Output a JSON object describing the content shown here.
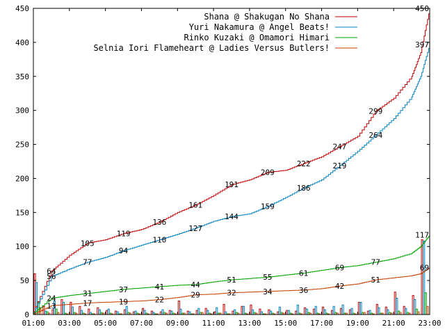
{
  "chart_data": {
    "type": "line",
    "xlim": [
      "01:00",
      "23:00"
    ],
    "ylim": [
      0,
      450
    ],
    "x_ticks": [
      "01:00",
      "03:00",
      "05:00",
      "07:00",
      "09:00",
      "11:00",
      "13:00",
      "15:00",
      "17:00",
      "19:00",
      "21:00",
      "23:00"
    ],
    "y_ticks": [
      0,
      50,
      100,
      150,
      200,
      250,
      300,
      350,
      400,
      450
    ],
    "legend_position": "top-right",
    "grid": false,
    "series": [
      {
        "name": "Shana @ Shakugan No Shana",
        "color": "#c00000",
        "x": [
          "01:00",
          "02:00",
          "03:00",
          "04:00",
          "05:00",
          "06:00",
          "07:00",
          "08:00",
          "09:00",
          "10:00",
          "11:00",
          "12:00",
          "13:00",
          "14:00",
          "15:00",
          "16:00",
          "17:00",
          "18:00",
          "19:00",
          "20:00",
          "21:00",
          "22:00",
          "22:30",
          "23:00"
        ],
        "values": [
          4,
          64,
          87,
          105,
          110,
          119,
          125,
          136,
          150,
          161,
          175,
          191,
          198,
          209,
          212,
          222,
          232,
          247,
          262,
          299,
          318,
          350,
          385,
          450
        ],
        "labels": [
          {
            "x": "02:00",
            "value": "64"
          },
          {
            "x": "04:00",
            "value": "105"
          },
          {
            "x": "06:00",
            "value": "119"
          },
          {
            "x": "08:00",
            "value": "136"
          },
          {
            "x": "10:00",
            "value": "161"
          },
          {
            "x": "12:00",
            "value": "191"
          },
          {
            "x": "14:00",
            "value": "209"
          },
          {
            "x": "16:00",
            "value": "222"
          },
          {
            "x": "18:00",
            "value": "247"
          },
          {
            "x": "20:00",
            "value": "299"
          },
          {
            "x": "23:00",
            "value": "450"
          }
        ]
      },
      {
        "name": "Yuri Nakamura @ Angel Beats!",
        "color": "#0080c0",
        "x": [
          "01:00",
          "02:00",
          "03:00",
          "04:00",
          "05:00",
          "06:00",
          "07:00",
          "08:00",
          "09:00",
          "10:00",
          "11:00",
          "12:00",
          "13:00",
          "14:00",
          "15:00",
          "16:00",
          "17:00",
          "18:00",
          "19:00",
          "20:00",
          "21:00",
          "22:00",
          "22:30",
          "23:00"
        ],
        "values": [
          3,
          56,
          67,
          77,
          84,
          94,
          102,
          110,
          118,
          127,
          137,
          144,
          148,
          159,
          172,
          186,
          198,
          219,
          240,
          264,
          288,
          320,
          350,
          397
        ],
        "labels": [
          {
            "x": "02:00",
            "value": "56"
          },
          {
            "x": "04:00",
            "value": "77"
          },
          {
            "x": "06:00",
            "value": "94"
          },
          {
            "x": "08:00",
            "value": "110"
          },
          {
            "x": "10:00",
            "value": "127"
          },
          {
            "x": "12:00",
            "value": "144"
          },
          {
            "x": "14:00",
            "value": "159"
          },
          {
            "x": "16:00",
            "value": "186"
          },
          {
            "x": "18:00",
            "value": "219"
          },
          {
            "x": "20:00",
            "value": "264"
          },
          {
            "x": "23:00",
            "value": "397"
          }
        ]
      },
      {
        "name": "Rinko Kuzaki @ Omamori Himari",
        "color": "#00a000",
        "x": [
          "01:00",
          "02:00",
          "03:00",
          "04:00",
          "05:00",
          "06:00",
          "07:00",
          "08:00",
          "09:00",
          "10:00",
          "11:00",
          "12:00",
          "13:00",
          "14:00",
          "15:00",
          "16:00",
          "17:00",
          "18:00",
          "19:00",
          "20:00",
          "21:00",
          "22:00",
          "22:30",
          "23:00"
        ],
        "values": [
          2,
          24,
          28,
          31,
          34,
          37,
          39,
          41,
          43,
          44,
          48,
          51,
          53,
          55,
          58,
          61,
          65,
          69,
          72,
          77,
          82,
          90,
          100,
          117
        ],
        "labels": [
          {
            "x": "02:00",
            "value": "24"
          },
          {
            "x": "04:00",
            "value": "31"
          },
          {
            "x": "06:00",
            "value": "37"
          },
          {
            "x": "08:00",
            "value": "41"
          },
          {
            "x": "10:00",
            "value": "44"
          },
          {
            "x": "12:00",
            "value": "51"
          },
          {
            "x": "14:00",
            "value": "55"
          },
          {
            "x": "16:00",
            "value": "61"
          },
          {
            "x": "18:00",
            "value": "69"
          },
          {
            "x": "20:00",
            "value": "77"
          },
          {
            "x": "23:00",
            "value": "117"
          }
        ]
      },
      {
        "name": "Selnia Iori Flameheart @ Ladies Versus Butlers!",
        "color": "#c04000",
        "x": [
          "01:00",
          "02:00",
          "03:00",
          "04:00",
          "05:00",
          "06:00",
          "07:00",
          "08:00",
          "09:00",
          "10:00",
          "11:00",
          "12:00",
          "13:00",
          "14:00",
          "15:00",
          "16:00",
          "17:00",
          "18:00",
          "19:00",
          "20:00",
          "21:00",
          "22:00",
          "22:30",
          "23:00"
        ],
        "values": [
          1,
          13,
          15,
          17,
          18,
          19,
          20,
          22,
          25,
          29,
          30,
          32,
          33,
          34,
          35,
          36,
          38,
          42,
          45,
          51,
          54,
          57,
          60,
          69
        ],
        "labels": [
          {
            "x": "02:00",
            "value": "13"
          },
          {
            "x": "04:00",
            "value": "17"
          },
          {
            "x": "06:00",
            "value": "19"
          },
          {
            "x": "08:00",
            "value": "22"
          },
          {
            "x": "10:00",
            "value": "29"
          },
          {
            "x": "12:00",
            "value": "32"
          },
          {
            "x": "14:00",
            "value": "34"
          },
          {
            "x": "16:00",
            "value": "36"
          },
          {
            "x": "18:00",
            "value": "42"
          },
          {
            "x": "20:00",
            "value": "51"
          },
          {
            "x": "23:00",
            "value": "69"
          }
        ]
      }
    ],
    "bars": {
      "x": [
        "01:00",
        "01:30",
        "02:00",
        "02:30",
        "03:00",
        "03:30",
        "04:00",
        "04:30",
        "05:00",
        "05:30",
        "06:00",
        "06:30",
        "07:00",
        "07:30",
        "08:00",
        "08:30",
        "09:00",
        "09:30",
        "10:00",
        "10:30",
        "11:00",
        "11:30",
        "12:00",
        "12:30",
        "13:00",
        "13:30",
        "14:00",
        "14:30",
        "15:00",
        "15:30",
        "16:00",
        "16:30",
        "17:00",
        "17:30",
        "18:00",
        "18:30",
        "19:00",
        "19:30",
        "20:00",
        "20:30",
        "21:00",
        "21:30",
        "22:00",
        "22:30"
      ],
      "series": [
        {
          "name": "Shana @ Shakugan No Shana",
          "values": [
            60,
            12,
            7,
            22,
            18,
            12,
            8,
            10,
            6,
            5,
            7,
            4,
            9,
            5,
            4,
            6,
            20,
            5,
            6,
            9,
            4,
            15,
            5,
            12,
            14,
            8,
            7,
            4,
            6,
            5,
            10,
            8,
            11,
            6,
            9,
            7,
            18,
            5,
            15,
            11,
            33,
            12,
            28,
            110
          ]
        },
        {
          "name": "Yuri Nakamura @ Angel Beats!",
          "values": [
            47,
            5,
            20,
            18,
            11,
            6,
            3,
            7,
            8,
            4,
            12,
            5,
            6,
            3,
            7,
            5,
            8,
            4,
            9,
            6,
            10,
            4,
            7,
            12,
            7,
            4,
            5,
            11,
            6,
            14,
            8,
            12,
            7,
            12,
            14,
            9,
            18,
            6,
            10,
            7,
            24,
            9,
            22,
            108
          ]
        },
        {
          "name": "Rinko Kuzaki @ Omamori Himari",
          "values": [
            18,
            4,
            8,
            2,
            3,
            2,
            1,
            3,
            2,
            1,
            3,
            2,
            2,
            1,
            3,
            2,
            2,
            1,
            3,
            2,
            2,
            1,
            3,
            2,
            3,
            1,
            2,
            3,
            2,
            2,
            3,
            2,
            2,
            3,
            2,
            2,
            3,
            2,
            2,
            3,
            5,
            3,
            8,
            32
          ]
        },
        {
          "name": "Selnia Iori Flameheart @ Ladies Versus Butlers!",
          "values": [
            10,
            2,
            3,
            1,
            2,
            1,
            1,
            2,
            1,
            1,
            2,
            1,
            1,
            1,
            2,
            1,
            2,
            1,
            3,
            1,
            2,
            1,
            2,
            1,
            2,
            1,
            1,
            2,
            1,
            1,
            2,
            1,
            1,
            2,
            2,
            1,
            3,
            1,
            2,
            2,
            3,
            2,
            4,
            12
          ]
        }
      ]
    }
  }
}
